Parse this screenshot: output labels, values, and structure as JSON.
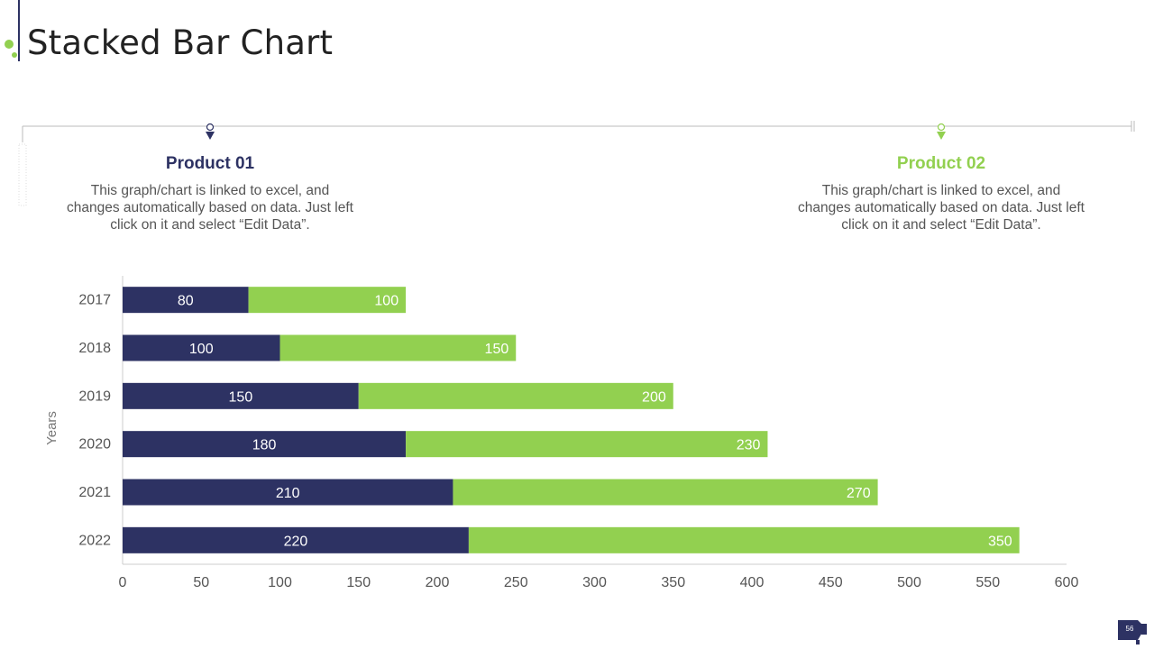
{
  "page": {
    "title": "Stacked Bar Chart",
    "slide_number": "56"
  },
  "products": [
    {
      "name": "Product 01",
      "description": "This graph/chart is linked to excel, and changes automatically based on data. Just left click on it and select “Edit Data”.",
      "color": "#2d3263"
    },
    {
      "name": "Product 02",
      "description": "This graph/chart is linked to excel, and changes automatically based on data. Just left click on it and select “Edit Data”.",
      "color": "#92d050"
    }
  ],
  "chart_data": {
    "type": "bar",
    "orientation": "horizontal",
    "stacked": true,
    "categories": [
      "2017",
      "2018",
      "2019",
      "2020",
      "2021",
      "2022"
    ],
    "series": [
      {
        "name": "Product 01",
        "values": [
          80,
          100,
          150,
          180,
          210,
          220
        ],
        "color": "#2d3263"
      },
      {
        "name": "Product 02",
        "values": [
          100,
          150,
          200,
          230,
          270,
          350
        ],
        "color": "#92d050"
      }
    ],
    "title": "",
    "xlabel": "",
    "ylabel": "Years",
    "xlim": [
      0,
      600
    ],
    "xticks": [
      0,
      50,
      100,
      150,
      200,
      250,
      300,
      350,
      400,
      450,
      500,
      550,
      600
    ],
    "grid": false,
    "legend": "none"
  }
}
